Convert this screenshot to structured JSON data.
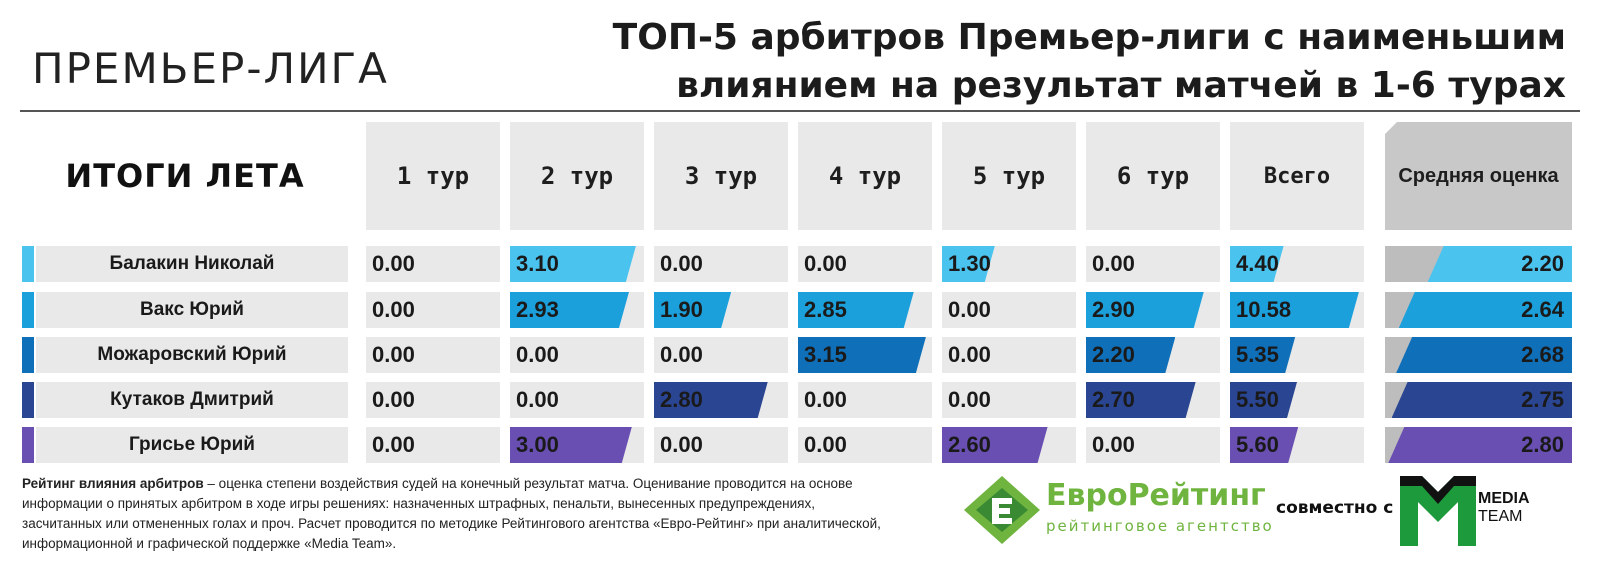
{
  "header": {
    "brand": "ПРЕМЬЕР-ЛИГА",
    "title": "ТОП-5 арбитров Премьер-лиги с наименьшим влиянием на результат матчей в 1-6 турах"
  },
  "table": {
    "corner_label": "ИТОГИ ЛЕТА",
    "columns": [
      "1 тур",
      "2 тур",
      "3 тур",
      "4 тур",
      "5 тур",
      "6 тур",
      "Всего",
      "Средняя оценка"
    ]
  },
  "chart_data": {
    "type": "table",
    "title": "ТОП-5 арбитров Премьер-лиги с наименьшим влиянием на результат матчей в 1-6 турах",
    "categories": [
      "1 тур",
      "2 тур",
      "3 тур",
      "4 тур",
      "5 тур",
      "6 тур"
    ],
    "total_label": "Всего",
    "average_label": "Средняя оценка",
    "rows": [
      {
        "name": "Балакин Николай",
        "color": "#4ac3ef",
        "rounds": [
          "0.00",
          "3.10",
          "0.00",
          "0.00",
          "1.30",
          "0.00"
        ],
        "total": "4.40",
        "average": "2.20"
      },
      {
        "name": "Вакс Юрий",
        "color": "#1ba0dc",
        "rounds": [
          "0.00",
          "2.93",
          "1.90",
          "2.85",
          "0.00",
          "2.90"
        ],
        "total": "10.58",
        "average": "2.64"
      },
      {
        "name": "Можаровский Юрий",
        "color": "#0f6fb8",
        "rounds": [
          "0.00",
          "0.00",
          "0.00",
          "3.15",
          "0.00",
          "2.20"
        ],
        "total": "5.35",
        "average": "2.68"
      },
      {
        "name": "Кутаков Дмитрий",
        "color": "#2a4592",
        "rounds": [
          "0.00",
          "0.00",
          "2.80",
          "0.00",
          "0.00",
          "2.70"
        ],
        "total": "5.50",
        "average": "2.75"
      },
      {
        "name": "Грисье Юрий",
        "color": "#6a4fb3",
        "rounds": [
          "0.00",
          "3.00",
          "0.00",
          "0.00",
          "2.60",
          "0.00"
        ],
        "total": "5.60",
        "average": "2.80"
      }
    ]
  },
  "footer": {
    "note_bold": "Рейтинг влияния арбитров",
    "note_text": " – оценка степени воздействия судей на конечный результат матча. Оценивание проводится на основе информации о принятых арбитром в ходе игры решениях: назначенных штрафных, пенальти, вынесенных предупреждениях, засчитанных или отмененных голах и проч. Расчет проводится по методике Рейтингового агентства «Евро-Рейтинг» при аналитической, информационной и графической поддержке «Media Team».",
    "logo_name": "ЕвроРейтинг",
    "logo_sub": "рейтинговое агентство",
    "together": "совместно с",
    "media_team_line1": "MEDIA",
    "media_team_line2": "TEAM",
    "logo_green": "#6fb43f",
    "logo_dark_green": "#3a8a34"
  }
}
